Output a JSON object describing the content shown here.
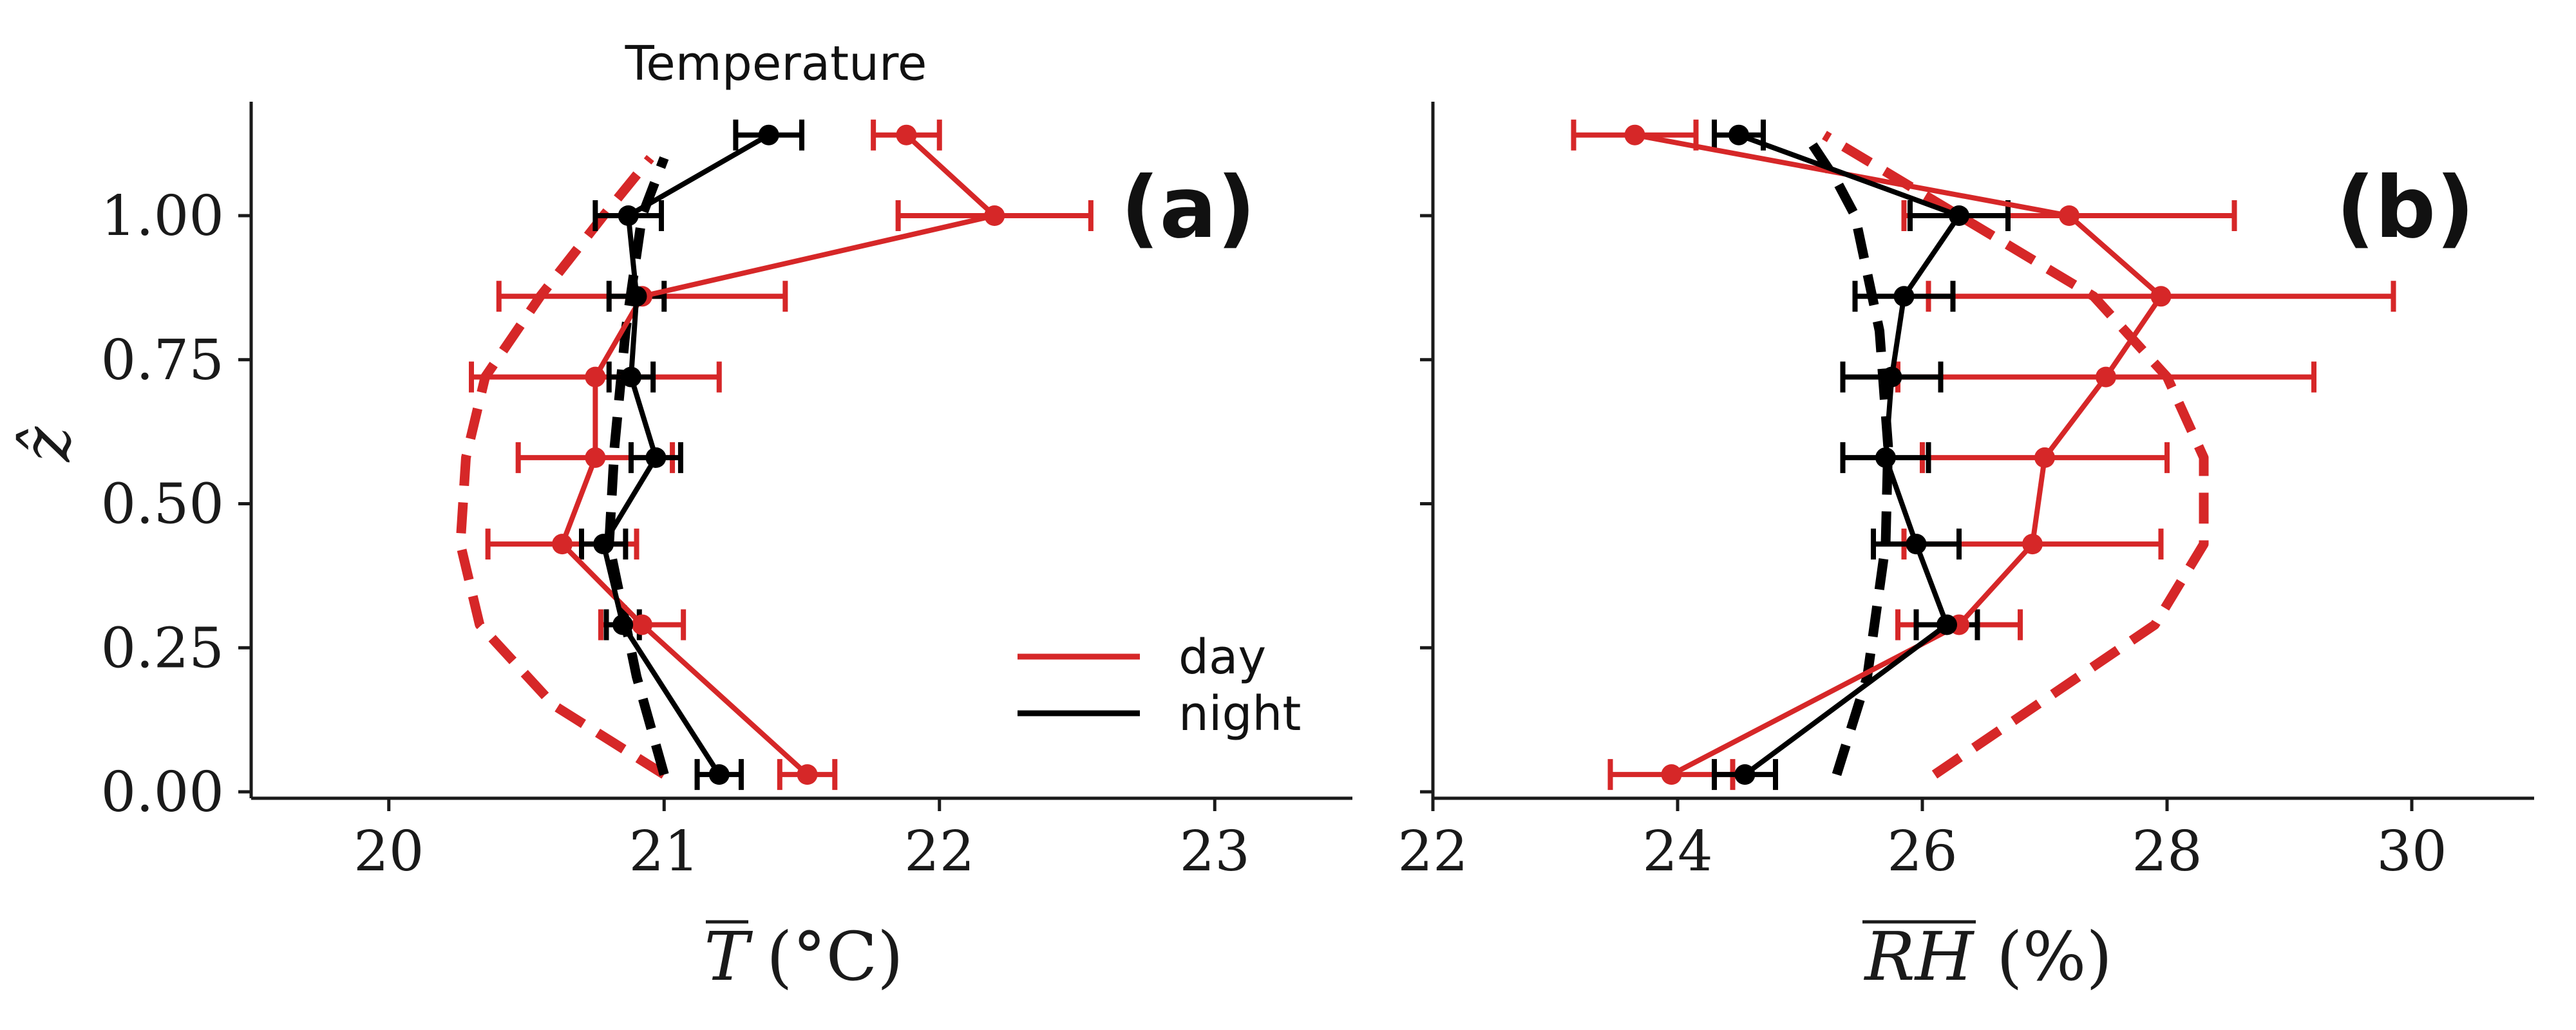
{
  "chart_data": [
    {
      "type": "line",
      "panel_label": "(a)",
      "title": "Temperature",
      "xlabel": "T (°C)",
      "xlabel_symbol": "T",
      "xlabel_unit": "(°C)",
      "ylabel": "ẑ",
      "xlim": [
        19.5,
        23.5
      ],
      "ylim": [
        0.0,
        1.2
      ],
      "xticks": [
        20,
        21,
        22,
        23
      ],
      "xtick_labels": [
        "20",
        "21",
        "22",
        "23"
      ],
      "yticks": [
        0.0,
        0.25,
        0.5,
        0.75,
        1.0
      ],
      "ytick_labels": [
        "0.00",
        "0.25",
        "0.50",
        "0.75",
        "1.00"
      ],
      "grid": false,
      "legend": {
        "placement": "lower-right",
        "entries": [
          "day",
          "night"
        ]
      },
      "series": [
        {
          "name": "day",
          "style": "solid-markers-errorbars",
          "color": "#d62728",
          "points": [
            {
              "x": 21.52,
              "y": 0.03,
              "xerr": 0.1
            },
            {
              "x": 20.92,
              "y": 0.29,
              "xerr": 0.15
            },
            {
              "x": 20.63,
              "y": 0.43,
              "xerr": 0.27
            },
            {
              "x": 20.75,
              "y": 0.58,
              "xerr": 0.28
            },
            {
              "x": 20.75,
              "y": 0.72,
              "xerr": 0.45
            },
            {
              "x": 20.92,
              "y": 0.86,
              "xerr": 0.52
            },
            {
              "x": 22.2,
              "y": 1.0,
              "xerr": 0.35
            },
            {
              "x": 21.88,
              "y": 1.14,
              "xerr": 0.12
            }
          ]
        },
        {
          "name": "night",
          "style": "solid-markers-errorbars",
          "color": "#000000",
          "points": [
            {
              "x": 21.2,
              "y": 0.03,
              "xerr": 0.08
            },
            {
              "x": 20.85,
              "y": 0.29,
              "xerr": 0.06
            },
            {
              "x": 20.78,
              "y": 0.43,
              "xerr": 0.08
            },
            {
              "x": 20.97,
              "y": 0.58,
              "xerr": 0.09
            },
            {
              "x": 20.88,
              "y": 0.72,
              "xerr": 0.08
            },
            {
              "x": 20.9,
              "y": 0.86,
              "xerr": 0.1
            },
            {
              "x": 20.87,
              "y": 1.0,
              "xerr": 0.12
            },
            {
              "x": 21.38,
              "y": 1.14,
              "xerr": 0.12
            }
          ]
        },
        {
          "name": "",
          "style": "dashed",
          "color": "#d62728",
          "points": [
            {
              "x": 21.0,
              "y": 0.03
            },
            {
              "x": 20.6,
              "y": 0.15
            },
            {
              "x": 20.33,
              "y": 0.29
            },
            {
              "x": 20.26,
              "y": 0.43
            },
            {
              "x": 20.28,
              "y": 0.58
            },
            {
              "x": 20.35,
              "y": 0.72
            },
            {
              "x": 20.55,
              "y": 0.86
            },
            {
              "x": 20.78,
              "y": 1.0
            },
            {
              "x": 20.95,
              "y": 1.1
            }
          ]
        },
        {
          "name": "",
          "style": "dashed",
          "color": "#000000",
          "points": [
            {
              "x": 21.0,
              "y": 0.03
            },
            {
              "x": 20.9,
              "y": 0.2
            },
            {
              "x": 20.8,
              "y": 0.43
            },
            {
              "x": 20.82,
              "y": 0.6
            },
            {
              "x": 20.86,
              "y": 0.8
            },
            {
              "x": 20.92,
              "y": 1.0
            },
            {
              "x": 21.0,
              "y": 1.1
            }
          ]
        }
      ]
    },
    {
      "type": "line",
      "panel_label": "(b)",
      "title": "",
      "xlabel": "RH (%)",
      "xlabel_symbol": "RH",
      "xlabel_unit": "(%)",
      "ylabel": "",
      "xlim": [
        22,
        31
      ],
      "ylim": [
        0.0,
        1.2
      ],
      "xticks": [
        22,
        24,
        26,
        28,
        30
      ],
      "xtick_labels": [
        "22",
        "24",
        "26",
        "28",
        "30"
      ],
      "yticks": [
        0.0,
        0.25,
        0.5,
        0.75,
        1.0
      ],
      "ytick_labels": [
        "",
        "",
        "",
        "",
        ""
      ],
      "grid": false,
      "series": [
        {
          "name": "day",
          "style": "solid-markers-errorbars",
          "color": "#d62728",
          "points": [
            {
              "x": 23.95,
              "y": 0.03,
              "xerr": 0.5
            },
            {
              "x": 26.3,
              "y": 0.29,
              "xerr": 0.5
            },
            {
              "x": 26.9,
              "y": 0.43,
              "xerr": 1.05
            },
            {
              "x": 27.0,
              "y": 0.58,
              "xerr": 1.0
            },
            {
              "x": 27.5,
              "y": 0.72,
              "xerr": 1.7
            },
            {
              "x": 27.95,
              "y": 0.86,
              "xerr": 1.9
            },
            {
              "x": 27.2,
              "y": 1.0,
              "xerr": 1.35
            },
            {
              "x": 23.65,
              "y": 1.14,
              "xerr": 0.5
            }
          ]
        },
        {
          "name": "night",
          "style": "solid-markers-errorbars",
          "color": "#000000",
          "points": [
            {
              "x": 24.55,
              "y": 0.03,
              "xerr": 0.25
            },
            {
              "x": 26.2,
              "y": 0.29,
              "xerr": 0.25
            },
            {
              "x": 25.95,
              "y": 0.43,
              "xerr": 0.35
            },
            {
              "x": 25.7,
              "y": 0.58,
              "xerr": 0.35
            },
            {
              "x": 25.75,
              "y": 0.72,
              "xerr": 0.4
            },
            {
              "x": 25.85,
              "y": 0.86,
              "xerr": 0.4
            },
            {
              "x": 26.3,
              "y": 1.0,
              "xerr": 0.4
            },
            {
              "x": 24.5,
              "y": 1.14,
              "xerr": 0.2
            }
          ]
        },
        {
          "name": "",
          "style": "dashed",
          "color": "#d62728",
          "points": [
            {
              "x": 26.1,
              "y": 0.03
            },
            {
              "x": 27.9,
              "y": 0.29
            },
            {
              "x": 28.3,
              "y": 0.43
            },
            {
              "x": 28.3,
              "y": 0.58
            },
            {
              "x": 28.0,
              "y": 0.72
            },
            {
              "x": 27.4,
              "y": 0.86
            },
            {
              "x": 26.3,
              "y": 1.0
            },
            {
              "x": 25.2,
              "y": 1.14
            }
          ]
        },
        {
          "name": "",
          "style": "dashed",
          "color": "#000000",
          "points": [
            {
              "x": 25.3,
              "y": 0.03
            },
            {
              "x": 25.55,
              "y": 0.2
            },
            {
              "x": 25.7,
              "y": 0.43
            },
            {
              "x": 25.72,
              "y": 0.6
            },
            {
              "x": 25.65,
              "y": 0.8
            },
            {
              "x": 25.45,
              "y": 1.0
            },
            {
              "x": 25.3,
              "y": 1.06
            },
            {
              "x": 25.05,
              "y": 1.14
            }
          ]
        }
      ]
    }
  ]
}
